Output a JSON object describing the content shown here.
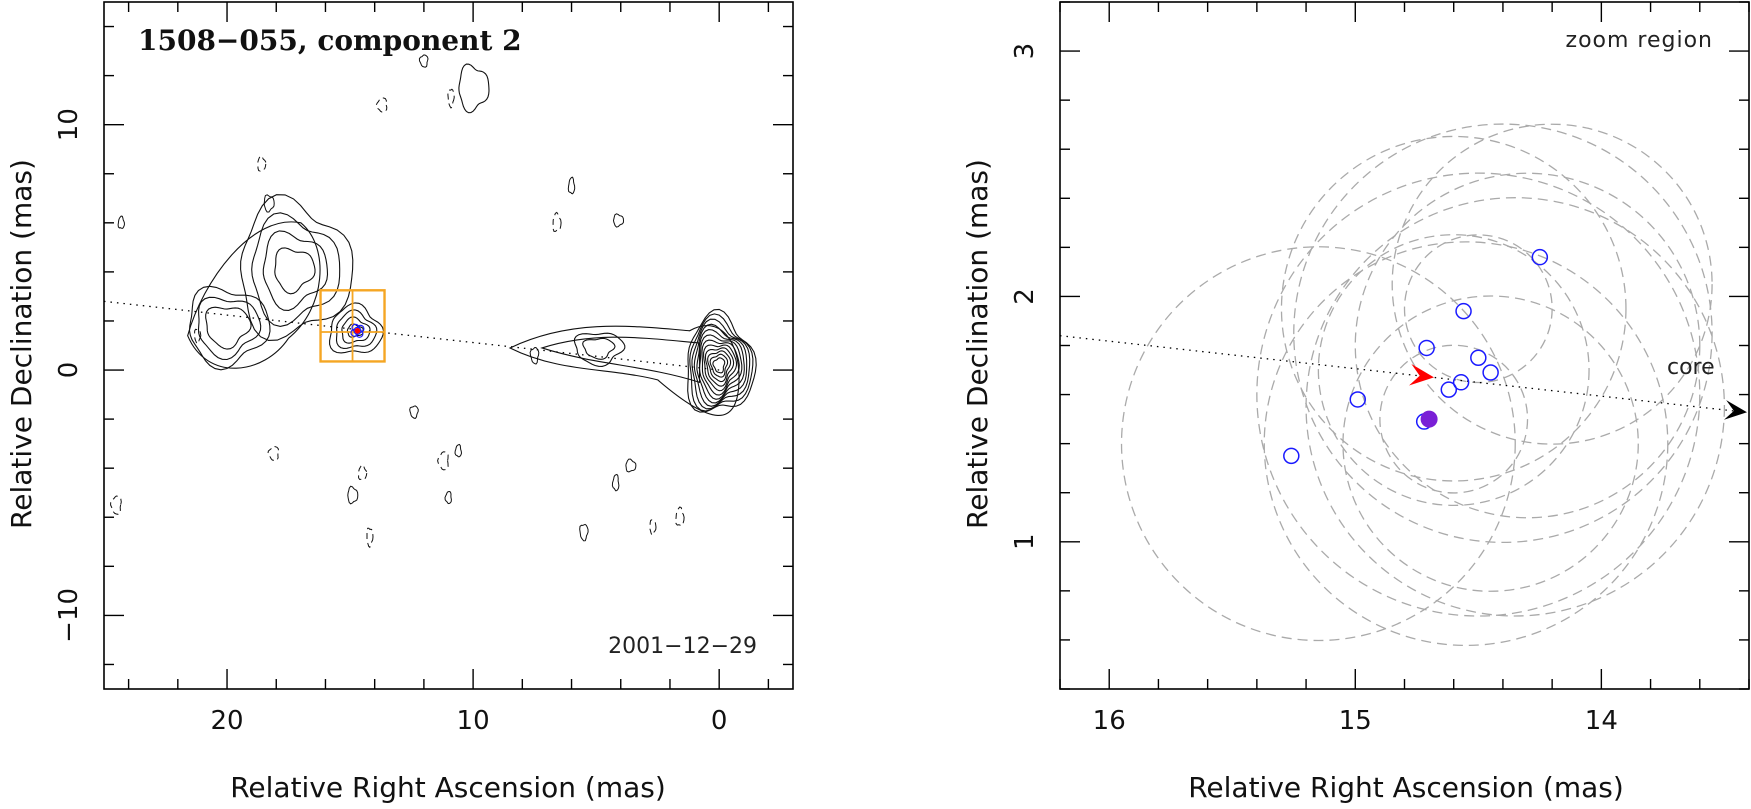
{
  "chart_data": [
    {
      "type": "scatter",
      "panel": "left",
      "title": "1508−055, component 2",
      "date_label": "2001−12−29",
      "xlabel": "Relative Right Ascension (mas)",
      "ylabel": "Relative Declination (mas)",
      "xlim": [
        25,
        -3
      ],
      "ylim": [
        -13,
        15
      ],
      "xticks": [
        20,
        10,
        0
      ],
      "xtick_labels": [
        "20",
        "10",
        "0"
      ],
      "yticks": [
        10,
        0,
        -10
      ],
      "ytick_labels": [
        "10",
        "0",
        "−10"
      ],
      "colors": {
        "contour": "#111111",
        "box": "#f5a623",
        "fit": "#1a1aff",
        "arrow": "#ff0000",
        "mean": "#7a1fd6"
      },
      "jet_axis": {
        "x": [
          25,
          0
        ],
        "y": [
          2.8,
          0.0
        ]
      },
      "zoom_box": {
        "x": [
          16.2,
          13.6
        ],
        "y": [
          0.35,
          3.25
        ],
        "cross": {
          "x": 14.9,
          "y": 1.55
        }
      },
      "component_position": {
        "x": 14.7,
        "y": 1.6
      },
      "contour_cores": [
        {
          "x": 0.0,
          "y": 0.2,
          "levels": 12
        },
        {
          "x": 17.3,
          "y": 4.1,
          "levels": 4
        },
        {
          "x": 20.0,
          "y": 1.8,
          "levels": 3
        },
        {
          "x": 14.8,
          "y": 1.6,
          "levels": 4
        },
        {
          "x": 4.9,
          "y": 0.9,
          "levels": 2
        },
        {
          "x": 10.0,
          "y": 11.5,
          "levels": 1
        }
      ]
    },
    {
      "type": "scatter",
      "panel": "right",
      "annotation": "zoom region",
      "arrow_label": "core",
      "xlabel": "Relative Right Ascension (mas)",
      "ylabel": "Relative Declination (mas)",
      "xlim": [
        16.2,
        13.4
      ],
      "ylim": [
        0.4,
        3.2
      ],
      "xticks": [
        16,
        15,
        14
      ],
      "xtick_labels": [
        "16",
        "15",
        "14"
      ],
      "yticks": [
        3,
        2,
        1
      ],
      "ytick_labels": [
        "3",
        "2",
        "1"
      ],
      "colors": {
        "fit": "#1a1aff",
        "arrow": "#ff0000",
        "mean": "#7a1fd6",
        "error_circle": "#aaaaaa",
        "axis_arrow": "#000000"
      },
      "jet_axis": {
        "x": [
          16.2,
          13.4
        ],
        "y": [
          1.84,
          1.53
        ]
      },
      "red_arrow": {
        "x": 14.68,
        "y": 1.67
      },
      "mean_position": {
        "x": 14.7,
        "y": 1.5
      },
      "fit_positions": [
        {
          "x": 14.25,
          "y": 2.16
        },
        {
          "x": 14.56,
          "y": 1.94
        },
        {
          "x": 14.71,
          "y": 1.79
        },
        {
          "x": 14.5,
          "y": 1.75
        },
        {
          "x": 14.45,
          "y": 1.69
        },
        {
          "x": 14.57,
          "y": 1.65
        },
        {
          "x": 14.62,
          "y": 1.62
        },
        {
          "x": 14.99,
          "y": 1.58
        },
        {
          "x": 14.72,
          "y": 1.49
        },
        {
          "x": 15.26,
          "y": 1.35
        }
      ],
      "error_circles": [
        {
          "x": 14.55,
          "y": 1.4,
          "r": 0.82
        },
        {
          "x": 14.5,
          "y": 1.6,
          "r": 0.9
        },
        {
          "x": 14.4,
          "y": 1.85,
          "r": 0.85
        },
        {
          "x": 14.35,
          "y": 1.55,
          "r": 0.85
        },
        {
          "x": 14.6,
          "y": 1.95,
          "r": 0.7
        },
        {
          "x": 14.3,
          "y": 1.8,
          "r": 0.7
        },
        {
          "x": 14.45,
          "y": 1.4,
          "r": 0.6
        },
        {
          "x": 15.15,
          "y": 1.4,
          "r": 0.8
        },
        {
          "x": 14.6,
          "y": 1.7,
          "r": 0.55
        },
        {
          "x": 14.2,
          "y": 2.05,
          "r": 0.65
        },
        {
          "x": 14.6,
          "y": 1.5,
          "r": 0.3
        },
        {
          "x": 14.5,
          "y": 1.95,
          "r": 0.3
        }
      ]
    }
  ]
}
